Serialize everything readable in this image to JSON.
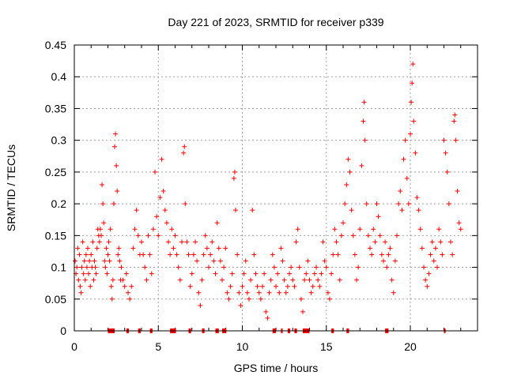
{
  "chart_data": {
    "type": "scatter",
    "title": "Day 221 of 2023, SRMTID for receiver p339",
    "xlabel": "GPS time / hours",
    "ylabel": "SRMTID / TECUs",
    "xlim": [
      0,
      24
    ],
    "ylim": [
      0,
      0.45
    ],
    "xticks": [
      0,
      5,
      10,
      15,
      20
    ],
    "yticks": [
      0,
      0.05,
      0.1,
      0.15,
      0.2,
      0.25,
      0.3,
      0.35,
      0.4,
      0.45
    ],
    "x_tick_labels": [
      "0",
      "5",
      "10",
      "15",
      "20"
    ],
    "y_tick_labels": [
      "0",
      "0.05",
      "0.1",
      "0.15",
      "0.2",
      "0.25",
      "0.3",
      "0.35",
      "0.4",
      "0.45"
    ],
    "grid": true,
    "marker": "+",
    "color": "#ff0000",
    "points": [
      [
        0.05,
        0.11
      ],
      [
        0.1,
        0.09
      ],
      [
        0.15,
        0.1
      ],
      [
        0.2,
        0.13
      ],
      [
        0.25,
        0.08
      ],
      [
        0.3,
        0.12
      ],
      [
        0.35,
        0.07
      ],
      [
        0.4,
        0.06
      ],
      [
        0.45,
        0.1
      ],
      [
        0.5,
        0.14
      ],
      [
        0.55,
        0.09
      ],
      [
        0.6,
        0.11
      ],
      [
        0.65,
        0.08
      ],
      [
        0.7,
        0.12
      ],
      [
        0.75,
        0.1
      ],
      [
        0.8,
        0.13
      ],
      [
        0.85,
        0.09
      ],
      [
        0.9,
        0.11
      ],
      [
        0.95,
        0.07
      ],
      [
        1.0,
        0.12
      ],
      [
        1.05,
        0.1
      ],
      [
        1.1,
        0.14
      ],
      [
        1.15,
        0.08
      ],
      [
        1.2,
        0.11
      ],
      [
        1.25,
        0.1
      ],
      [
        1.3,
        0.09
      ],
      [
        1.35,
        0.13
      ],
      [
        1.4,
        0.16
      ],
      [
        1.45,
        0.15
      ],
      [
        1.5,
        0.14
      ],
      [
        1.55,
        0.16
      ],
      [
        1.6,
        0.15
      ],
      [
        1.65,
        0.23
      ],
      [
        1.7,
        0.2
      ],
      [
        1.75,
        0.17
      ],
      [
        1.8,
        0.11
      ],
      [
        1.85,
        0.1
      ],
      [
        1.9,
        0.13
      ],
      [
        1.95,
        0.09
      ],
      [
        2.0,
        0.12
      ],
      [
        2.05,
        0.14
      ],
      [
        2.1,
        0.11
      ],
      [
        2.15,
        0.16
      ],
      [
        2.2,
        0.07
      ],
      [
        2.25,
        0.05
      ],
      [
        2.3,
        0.08
      ],
      [
        2.35,
        0.2
      ],
      [
        2.4,
        0.29
      ],
      [
        2.45,
        0.31
      ],
      [
        2.5,
        0.26
      ],
      [
        2.55,
        0.22
      ],
      [
        2.6,
        0.12
      ],
      [
        2.65,
        0.13
      ],
      [
        2.7,
        0.11
      ],
      [
        2.75,
        0.08
      ],
      [
        2.8,
        0.1
      ],
      [
        2.9,
        0.08
      ],
      [
        3.0,
        0.07
      ],
      [
        3.1,
        0.09
      ],
      [
        3.2,
        0.06
      ],
      [
        3.3,
        0.05
      ],
      [
        3.4,
        0.07
      ],
      [
        3.5,
        0.13
      ],
      [
        3.6,
        0.16
      ],
      [
        3.7,
        0.19
      ],
      [
        3.8,
        0.15
      ],
      [
        3.9,
        0.12
      ],
      [
        4.0,
        0.14
      ],
      [
        4.1,
        0.12
      ],
      [
        4.2,
        0.1
      ],
      [
        4.3,
        0.08
      ],
      [
        4.4,
        0.15
      ],
      [
        4.5,
        0.12
      ],
      [
        4.6,
        0.09
      ],
      [
        4.7,
        0.16
      ],
      [
        4.8,
        0.25
      ],
      [
        4.9,
        0.18
      ],
      [
        5.0,
        0.15
      ],
      [
        5.1,
        0.21
      ],
      [
        5.2,
        0.27
      ],
      [
        5.3,
        0.22
      ],
      [
        5.4,
        0.19
      ],
      [
        5.5,
        0.17
      ],
      [
        5.6,
        0.14
      ],
      [
        5.7,
        0.12
      ],
      [
        5.8,
        0.16
      ],
      [
        5.9,
        0.13
      ],
      [
        6.0,
        0.15
      ],
      [
        6.1,
        0.12
      ],
      [
        6.2,
        0.1
      ],
      [
        6.3,
        0.08
      ],
      [
        6.4,
        0.14
      ],
      [
        6.5,
        0.28
      ],
      [
        6.55,
        0.29
      ],
      [
        6.6,
        0.2
      ],
      [
        6.7,
        0.14
      ],
      [
        6.8,
        0.12
      ],
      [
        6.9,
        0.07
      ],
      [
        7.0,
        0.09
      ],
      [
        7.1,
        0.12
      ],
      [
        7.2,
        0.14
      ],
      [
        7.3,
        0.11
      ],
      [
        7.4,
        0.06
      ],
      [
        7.5,
        0.04
      ],
      [
        7.6,
        0.08
      ],
      [
        7.7,
        0.12
      ],
      [
        7.8,
        0.15
      ],
      [
        7.9,
        0.13
      ],
      [
        8.0,
        0.1
      ],
      [
        8.1,
        0.12
      ],
      [
        8.2,
        0.14
      ],
      [
        8.3,
        0.11
      ],
      [
        8.4,
        0.09
      ],
      [
        8.5,
        0.17
      ],
      [
        8.6,
        0.13
      ],
      [
        8.7,
        0.11
      ],
      [
        8.8,
        0.08
      ],
      [
        8.9,
        0.1
      ],
      [
        9.0,
        0.13
      ],
      [
        9.1,
        0.06
      ],
      [
        9.2,
        0.05
      ],
      [
        9.3,
        0.07
      ],
      [
        9.4,
        0.09
      ],
      [
        9.5,
        0.24
      ],
      [
        9.55,
        0.25
      ],
      [
        9.6,
        0.19
      ],
      [
        9.7,
        0.12
      ],
      [
        9.8,
        0.06
      ],
      [
        9.9,
        0.04
      ],
      [
        10.0,
        0.07
      ],
      [
        10.1,
        0.09
      ],
      [
        10.2,
        0.11
      ],
      [
        10.3,
        0.06
      ],
      [
        10.4,
        0.05
      ],
      [
        10.5,
        0.08
      ],
      [
        10.6,
        0.19
      ],
      [
        10.7,
        0.12
      ],
      [
        10.8,
        0.09
      ],
      [
        10.9,
        0.07
      ],
      [
        11.0,
        0.06
      ],
      [
        11.1,
        0.05
      ],
      [
        11.2,
        0.07
      ],
      [
        11.3,
        0.09
      ],
      [
        11.4,
        0.03
      ],
      [
        11.5,
        0.02
      ],
      [
        11.6,
        0.06
      ],
      [
        11.7,
        0.08
      ],
      [
        11.8,
        0.12
      ],
      [
        11.9,
        0.1
      ],
      [
        12.0,
        0.07
      ],
      [
        12.1,
        0.09
      ],
      [
        12.2,
        0.06
      ],
      [
        12.3,
        0.13
      ],
      [
        12.4,
        0.11
      ],
      [
        12.5,
        0.08
      ],
      [
        12.6,
        0.06
      ],
      [
        12.7,
        0.07
      ],
      [
        12.8,
        0.09
      ],
      [
        12.9,
        0.1
      ],
      [
        13.0,
        0.08
      ],
      [
        13.1,
        0.07
      ],
      [
        13.2,
        0.14
      ],
      [
        13.3,
        0.16
      ],
      [
        13.4,
        0.1
      ],
      [
        13.5,
        0.05
      ],
      [
        13.6,
        0.03
      ],
      [
        13.7,
        0.08
      ],
      [
        13.8,
        0.09
      ],
      [
        13.9,
        0.11
      ],
      [
        14.0,
        0.08
      ],
      [
        14.1,
        0.06
      ],
      [
        14.2,
        0.07
      ],
      [
        14.3,
        0.09
      ],
      [
        14.4,
        0.1
      ],
      [
        14.5,
        0.08
      ],
      [
        14.6,
        0.07
      ],
      [
        14.7,
        0.09
      ],
      [
        14.8,
        0.14
      ],
      [
        14.9,
        0.11
      ],
      [
        15.0,
        0.1
      ],
      [
        15.1,
        0.06
      ],
      [
        15.2,
        0.05
      ],
      [
        15.3,
        0.09
      ],
      [
        15.4,
        0.12
      ],
      [
        15.5,
        0.16
      ],
      [
        15.6,
        0.14
      ],
      [
        15.7,
        0.12
      ],
      [
        15.8,
        0.08
      ],
      [
        15.9,
        0.15
      ],
      [
        16.0,
        0.17
      ],
      [
        16.1,
        0.2
      ],
      [
        16.2,
        0.23
      ],
      [
        16.3,
        0.27
      ],
      [
        16.4,
        0.25
      ],
      [
        16.5,
        0.19
      ],
      [
        16.6,
        0.15
      ],
      [
        16.7,
        0.12
      ],
      [
        16.8,
        0.08
      ],
      [
        16.9,
        0.1
      ],
      [
        17.0,
        0.16
      ],
      [
        17.1,
        0.26
      ],
      [
        17.2,
        0.33
      ],
      [
        17.25,
        0.36
      ],
      [
        17.3,
        0.3
      ],
      [
        17.4,
        0.2
      ],
      [
        17.5,
        0.15
      ],
      [
        17.6,
        0.13
      ],
      [
        17.7,
        0.12
      ],
      [
        17.8,
        0.16
      ],
      [
        17.9,
        0.14
      ],
      [
        18.0,
        0.2
      ],
      [
        18.1,
        0.18
      ],
      [
        18.2,
        0.15
      ],
      [
        18.3,
        0.12
      ],
      [
        18.4,
        0.11
      ],
      [
        18.5,
        0.14
      ],
      [
        18.6,
        0.1
      ],
      [
        18.7,
        0.12
      ],
      [
        18.8,
        0.13
      ],
      [
        18.9,
        0.08
      ],
      [
        19.0,
        0.06
      ],
      [
        19.1,
        0.11
      ],
      [
        19.2,
        0.15
      ],
      [
        19.3,
        0.2
      ],
      [
        19.4,
        0.22
      ],
      [
        19.5,
        0.19
      ],
      [
        19.6,
        0.27
      ],
      [
        19.7,
        0.3
      ],
      [
        19.8,
        0.24
      ],
      [
        19.9,
        0.2
      ],
      [
        20.0,
        0.31
      ],
      [
        20.05,
        0.36
      ],
      [
        20.1,
        0.39
      ],
      [
        20.15,
        0.42
      ],
      [
        20.2,
        0.33
      ],
      [
        20.3,
        0.28
      ],
      [
        20.4,
        0.21
      ],
      [
        20.5,
        0.19
      ],
      [
        20.6,
        0.16
      ],
      [
        20.7,
        0.13
      ],
      [
        20.8,
        0.1
      ],
      [
        20.9,
        0.08
      ],
      [
        21.0,
        0.07
      ],
      [
        21.1,
        0.09
      ],
      [
        21.2,
        0.12
      ],
      [
        21.3,
        0.14
      ],
      [
        21.4,
        0.11
      ],
      [
        21.5,
        0.13
      ],
      [
        21.6,
        0.1
      ],
      [
        21.7,
        0.16
      ],
      [
        21.8,
        0.14
      ],
      [
        21.9,
        0.12
      ],
      [
        22.0,
        0.3
      ],
      [
        22.1,
        0.28
      ],
      [
        22.2,
        0.25
      ],
      [
        22.3,
        0.2
      ],
      [
        22.4,
        0.14
      ],
      [
        22.5,
        0.12
      ],
      [
        22.6,
        0.33
      ],
      [
        22.65,
        0.34
      ],
      [
        22.7,
        0.3
      ],
      [
        22.8,
        0.22
      ],
      [
        22.9,
        0.17
      ],
      [
        23.0,
        0.16
      ]
    ],
    "zero_segments": [
      [
        2.0,
        2.4
      ],
      [
        3.1,
        3.25
      ],
      [
        3.8,
        3.95
      ],
      [
        4.5,
        4.65
      ],
      [
        5.7,
        6.05
      ],
      [
        6.8,
        6.95
      ],
      [
        7.6,
        7.75
      ],
      [
        8.4,
        8.6
      ],
      [
        8.8,
        9.05
      ],
      [
        11.8,
        12.0
      ],
      [
        12.3,
        12.4
      ],
      [
        12.7,
        12.85
      ],
      [
        13.1,
        13.25
      ],
      [
        13.6,
        14.0
      ],
      [
        15.3,
        15.45
      ],
      [
        16.2,
        16.35
      ],
      [
        18.5,
        18.7
      ],
      [
        22.0,
        22.1
      ]
    ]
  }
}
